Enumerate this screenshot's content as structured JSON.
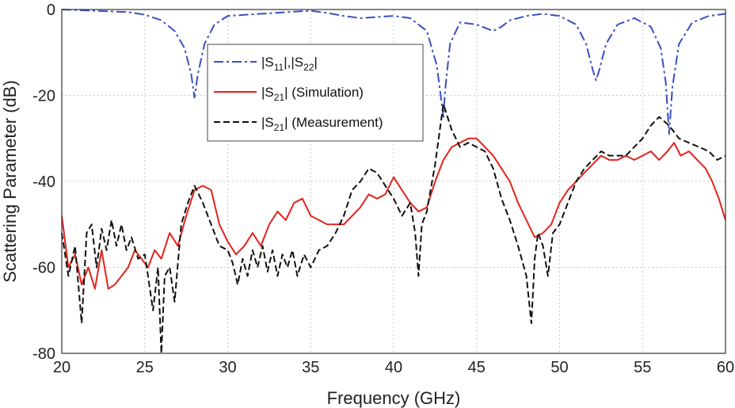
{
  "chart_data": {
    "type": "line",
    "title": "",
    "xlabel": "Frequency (GHz)",
    "ylabel": "Scattering Parameter (dB)",
    "xlim": [
      20,
      60
    ],
    "ylim": [
      -80,
      0
    ],
    "xticks": [
      "20",
      "25",
      "30",
      "35",
      "40",
      "45",
      "50",
      "55",
      "60"
    ],
    "yticks": [
      "0",
      "-20",
      "-40",
      "-60",
      "-80"
    ],
    "grid": true,
    "legend_position": "top-center",
    "series": [
      {
        "name": "|S11|,|S22|",
        "legend": {
          "pre": "|S",
          "sub1": "11",
          "mid": "|,|S",
          "sub2": "22",
          "post": "|"
        },
        "color": "#3a4fc2",
        "dash": "12 4 3 4",
        "x": [
          20,
          22,
          24,
          25,
          26,
          26.8,
          27.4,
          27.8,
          28.0,
          28.2,
          28.6,
          29.2,
          30,
          32,
          34,
          35,
          36,
          37,
          38,
          40,
          41,
          42,
          42.6,
          42.9,
          43.0,
          43.1,
          43.4,
          44,
          45,
          46,
          46.5,
          47,
          48,
          49,
          50,
          51,
          51.6,
          52.0,
          52.2,
          52.4,
          52.8,
          53.5,
          54.5,
          55.5,
          56.1,
          56.4,
          56.6,
          56.8,
          57.2,
          58,
          59,
          60
        ],
        "values": [
          0,
          -0.3,
          -0.6,
          -1.2,
          -2.5,
          -5,
          -9,
          -15,
          -20.5,
          -15,
          -8,
          -3.5,
          -1.5,
          -1,
          -0.5,
          -0.3,
          -0.8,
          -1.5,
          -2,
          -1.5,
          -2,
          -5,
          -13,
          -22,
          -25,
          -19,
          -8,
          -3,
          -3.5,
          -5,
          -4,
          -2.5,
          -1.5,
          -1,
          -1.5,
          -3.5,
          -8,
          -14,
          -16.5,
          -14,
          -8,
          -3.5,
          -2,
          -4,
          -9,
          -17,
          -29,
          -18,
          -8,
          -3,
          -1.5,
          -1
        ]
      },
      {
        "name": "|S21| (Simulation)",
        "legend": {
          "pre": "|S",
          "sub1": "21",
          "post": "| (Simulation)"
        },
        "color": "#e3231c",
        "dash": "",
        "x": [
          20,
          20.4,
          20.8,
          21.2,
          21.6,
          22,
          22.4,
          22.8,
          23.2,
          23.6,
          24,
          24.4,
          24.8,
          25.2,
          25.6,
          26,
          26.5,
          27,
          27.5,
          28,
          28.5,
          29,
          29.5,
          30,
          30.5,
          31,
          31.5,
          32,
          32.5,
          33,
          33.5,
          34,
          34.5,
          35,
          35.5,
          36,
          36.5,
          37,
          37.5,
          38,
          38.5,
          39,
          39.5,
          40,
          40.5,
          41,
          41.5,
          42,
          42.5,
          43,
          43.5,
          44,
          44.5,
          45,
          45.5,
          46,
          46.5,
          47,
          47.5,
          48,
          48.5,
          49,
          49.5,
          50,
          50.5,
          51,
          51.5,
          52,
          52.5,
          53,
          53.5,
          54,
          54.5,
          55,
          55.5,
          56,
          56.5,
          56.9,
          57.3,
          57.8,
          58.3,
          58.8,
          59.2,
          59.6,
          60
        ],
        "values": [
          -48,
          -60,
          -57,
          -64,
          -60,
          -65,
          -56,
          -65,
          -64,
          -62,
          -60,
          -56,
          -58,
          -60,
          -56,
          -58,
          -52,
          -55,
          -48,
          -42,
          -41,
          -42,
          -50,
          -54,
          -57,
          -55,
          -52,
          -55,
          -50,
          -47,
          -49,
          -45,
          -44,
          -48,
          -49,
          -50,
          -50,
          -50,
          -48,
          -46,
          -43,
          -44,
          -43,
          -39,
          -42,
          -45,
          -47,
          -46,
          -40,
          -35,
          -32,
          -31,
          -30,
          -30,
          -32,
          -34,
          -37,
          -40,
          -45,
          -49,
          -53,
          -52,
          -50,
          -45,
          -42,
          -40,
          -38,
          -36,
          -34,
          -35,
          -35,
          -34,
          -35,
          -34,
          -33,
          -35,
          -33,
          -31,
          -34,
          -33,
          -35,
          -37,
          -40,
          -44,
          -49
        ]
      },
      {
        "name": "|S21| (Measurement)",
        "legend": {
          "pre": "|S",
          "sub1": "21",
          "post": "| (Measurement)"
        },
        "color": "#111111",
        "dash": "8 4",
        "x": [
          20,
          20.4,
          20.8,
          21.2,
          21.5,
          21.8,
          22.1,
          22.4,
          22.7,
          23,
          23.3,
          23.6,
          23.9,
          24.2,
          24.6,
          25,
          25.2,
          25.5,
          25.8,
          26,
          26.2,
          26.5,
          26.8,
          27.2,
          27.6,
          28,
          28.5,
          29,
          29.5,
          30,
          30.3,
          30.6,
          30.9,
          31.2,
          31.5,
          31.8,
          32.1,
          32.4,
          32.7,
          33,
          33.3,
          33.6,
          33.9,
          34.2,
          34.6,
          35,
          35.5,
          36,
          36.5,
          37,
          37.5,
          38,
          38.5,
          39,
          39.5,
          40,
          40.5,
          41,
          41.3,
          41.5,
          41.7,
          42,
          42.5,
          43,
          43.5,
          44,
          44.5,
          45,
          45.5,
          46,
          46.5,
          47,
          47.5,
          48,
          48.3,
          48.5,
          48.7,
          49,
          49.3,
          49.6,
          50,
          50.5,
          51,
          51.5,
          52,
          52.5,
          53,
          53.5,
          54,
          54.5,
          55,
          55.5,
          56,
          56.6,
          57.2,
          57.8,
          58.4,
          59,
          59.5,
          60
        ],
        "values": [
          -52,
          -62,
          -55,
          -73,
          -52,
          -50,
          -60,
          -51,
          -56,
          -49,
          -55,
          -50,
          -56,
          -53,
          -58,
          -57,
          -62,
          -70,
          -60,
          -80,
          -62,
          -60,
          -68,
          -50,
          -45,
          -41,
          -45,
          -50,
          -55,
          -56,
          -59,
          -64,
          -58,
          -62,
          -56,
          -60,
          -55,
          -61,
          -56,
          -62,
          -57,
          -60,
          -56,
          -62,
          -57,
          -60,
          -56,
          -55,
          -52,
          -48,
          -42,
          -40,
          -37,
          -38,
          -41,
          -44,
          -48,
          -45,
          -52,
          -62,
          -50,
          -47,
          -36,
          -22,
          -28,
          -32,
          -31,
          -32,
          -33,
          -37,
          -44,
          -49,
          -55,
          -62,
          -73,
          -58,
          -52,
          -55,
          -62,
          -52,
          -50,
          -45,
          -40,
          -37,
          -35,
          -33,
          -34,
          -34,
          -34,
          -32,
          -30,
          -27,
          -25,
          -27,
          -30,
          -31,
          -32,
          -33,
          -35,
          -34
        ]
      }
    ]
  }
}
